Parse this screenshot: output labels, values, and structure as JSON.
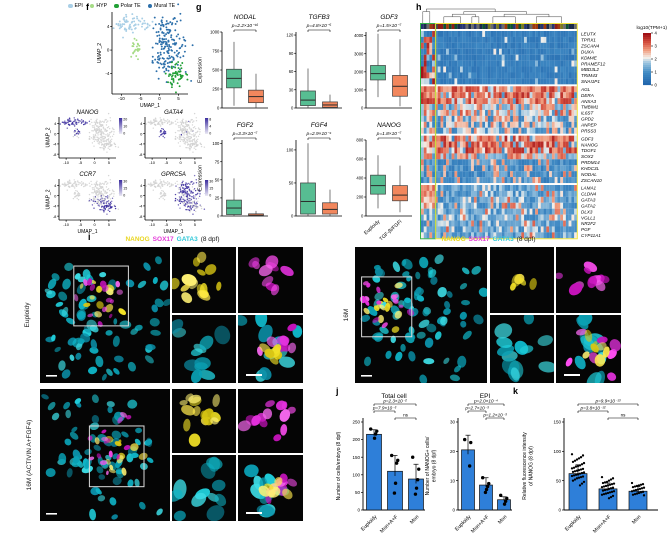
{
  "panels": {
    "f": "f",
    "g": "g",
    "h": "h",
    "i": "i",
    "j": "j",
    "k": "k"
  },
  "panel_f": {
    "legend": [
      {
        "label": "EPI",
        "color": "#A9CFE6"
      },
      {
        "label": "HYP",
        "color": "#A5DB85"
      },
      {
        "label": "Polar TE",
        "color": "#21A035"
      },
      {
        "label": "Mural TE",
        "color": "#2C6FAA"
      }
    ],
    "umap_xlabel": "UMAP_1",
    "umap_ylabel": "UMAP_2",
    "umap_xticks": [
      "-10",
      "-5",
      "0",
      "5"
    ],
    "umap_yticks": [
      "4",
      "0",
      "-4"
    ],
    "feature_yticks": [
      "4",
      "0",
      "-4",
      "-8"
    ],
    "feature_high_color": "#3B2D9E",
    "feature_low_color": "#D2D2D2",
    "feature_plots": [
      {
        "title": "NANOG",
        "colorbar_ticks": [
          "20",
          "10",
          "0"
        ]
      },
      {
        "title": "GATA4",
        "colorbar_ticks": [
          "8",
          "4",
          "0"
        ]
      },
      {
        "title": "CCR7",
        "colorbar_ticks": [
          "30",
          "15",
          "0"
        ]
      },
      {
        "title": "GPRC5A",
        "colorbar_ticks": [
          "30",
          "15",
          "0"
        ]
      }
    ]
  },
  "panel_g": {
    "ylabel": "Expression",
    "group_labels": [
      "Euploidy",
      "TGF-βi/FGFi"
    ],
    "euploidy_color": "#57BD92",
    "treated_color": "#F2875D"
  },
  "panel_h": {
    "colorbar_title": "log10(TPM+1)",
    "colorbar_ticks": [
      "4",
      "3",
      "2",
      "1",
      "0"
    ],
    "left_box_color": "#35B44A",
    "right_box_color": "#F2E63C",
    "gene_groups": [
      [
        "LEUTX",
        "TPRX1",
        "ZSCAN4",
        "DUXA",
        "KDM4E",
        "PRAMEF12",
        "MBD3L2",
        "TRIM43",
        "SNAI1P1"
      ],
      [
        "AGL",
        "DERA",
        "ANXA3",
        "TMBIM1",
        "IL6ST",
        "GPD2",
        "ANPEP",
        "PRSS3"
      ],
      [
        "GDF3",
        "NANOG",
        "TDGF1",
        "SOX2",
        "PRDM14",
        "KHDC3L",
        "NODAL",
        "ZSCAN10"
      ],
      [
        "LAMA1",
        "CLDN4",
        "GATA3",
        "GATA2",
        "DLX3",
        "VGLL1",
        "NR2F2",
        "PGF",
        "CYP11A1"
      ]
    ]
  },
  "panel_i": {
    "caption": [
      {
        "text": "NANOG",
        "color": "#E9D622"
      },
      {
        "text": "SOX17",
        "color": "#E43BD9"
      },
      {
        "text": "GATA3",
        "color": "#2FC8D8"
      },
      {
        "text": "(8 dpf)",
        "color": "#111111"
      }
    ],
    "row_labels": {
      "euploidy": "Euploidy",
      "treated": "16M (ACTIVIN A+FGF4)",
      "mono": "16M"
    }
  },
  "chart_data": [
    {
      "id": "box_NODAL",
      "type": "box",
      "title": "NODAL",
      "pvalue": "p=2.2×10⁻¹⁶",
      "ymax": 1000,
      "yticks": [
        0,
        250,
        500,
        750,
        1000
      ],
      "show_ylabel": true,
      "show_xlabels": false,
      "boxes": [
        {
          "lo": 30,
          "q1": 265,
          "med": 390,
          "q3": 510,
          "hi": 870
        },
        {
          "lo": 5,
          "q1": 70,
          "med": 150,
          "q3": 235,
          "hi": 450
        }
      ]
    },
    {
      "id": "box_TGFB3",
      "type": "box",
      "title": "TGFB3",
      "pvalue": "p=4.8×10⁻⁵",
      "ymax": 125,
      "yticks": [
        0,
        30,
        60,
        90,
        120
      ],
      "show_ylabel": false,
      "show_xlabels": false,
      "boxes": [
        {
          "lo": 0,
          "q1": 4,
          "med": 13,
          "q3": 28,
          "hi": 65
        },
        {
          "lo": 0,
          "q1": 1,
          "med": 5,
          "q3": 10,
          "hi": 22
        }
      ]
    },
    {
      "id": "box_GDF3",
      "type": "box",
      "title": "GDF3",
      "pvalue": "p=1.5×10⁻⁷",
      "ymax": 4200,
      "yticks": [
        0,
        1000,
        2000,
        3000,
        4000
      ],
      "show_ylabel": false,
      "show_xlabels": false,
      "boxes": [
        {
          "lo": 600,
          "q1": 1550,
          "med": 1900,
          "q3": 2350,
          "hi": 4100
        },
        {
          "lo": 100,
          "q1": 650,
          "med": 1200,
          "q3": 1800,
          "hi": 3800
        }
      ]
    },
    {
      "id": "box_FGF2",
      "type": "box",
      "title": "FGF2",
      "pvalue": "p=3.3×10⁻⁷",
      "ymax": 105,
      "yticks": [
        0,
        25,
        50,
        75,
        100
      ],
      "show_ylabel": true,
      "show_xlabels": false,
      "boxes": [
        {
          "lo": 0,
          "q1": 2,
          "med": 11,
          "q3": 22,
          "hi": 52
        },
        {
          "lo": 0,
          "q1": 0,
          "med": 1,
          "q3": 3,
          "hi": 7
        }
      ]
    },
    {
      "id": "box_FGF4",
      "type": "box",
      "title": "FGF4",
      "pvalue": "p=2.9×10⁻⁴",
      "ymax": 115,
      "yticks": [
        0,
        50,
        100
      ],
      "show_ylabel": false,
      "show_xlabels": false,
      "boxes": [
        {
          "lo": 0,
          "q1": 3,
          "med": 22,
          "q3": 50,
          "hi": 110
        },
        {
          "lo": 0,
          "q1": 3,
          "med": 10,
          "q3": 20,
          "hi": 40
        }
      ]
    },
    {
      "id": "box_NANOG",
      "type": "box",
      "title": "NANOG",
      "pvalue": "p=1.8×10⁻⁷",
      "ymax": 800,
      "yticks": [
        0,
        200,
        400,
        600,
        800
      ],
      "show_ylabel": false,
      "show_xlabels": true,
      "boxes": [
        {
          "lo": 80,
          "q1": 230,
          "med": 320,
          "q3": 430,
          "hi": 640
        },
        {
          "lo": 40,
          "q1": 160,
          "med": 220,
          "q3": 320,
          "hi": 530
        }
      ]
    },
    {
      "id": "bar_total",
      "type": "bar",
      "title": "Total cell",
      "ylabel": "Number of cells/embryo (8 dpf)",
      "ylabel_lines": [
        "Number of cells/embryo (8 dpf)"
      ],
      "categories": [
        "Euploidy",
        "Mon+A+F",
        "Mon"
      ],
      "values": [
        215,
        110,
        88
      ],
      "errors": [
        13,
        45,
        42
      ],
      "yticks": [
        0,
        50,
        100,
        150,
        200,
        250
      ],
      "ymax": 250,
      "bar_color": "#2E7FD9",
      "dots": [
        [
          230,
          224,
          216,
          204
        ],
        [
          155,
          141,
          133,
          76,
          48
        ],
        [
          150,
          116,
          86,
          62,
          45
        ]
      ],
      "significance": [
        {
          "pair": [
            0,
            2
          ],
          "label": "p=2.3×10⁻²"
        },
        {
          "pair": [
            0,
            1
          ],
          "label": "p=7.9×10⁻³"
        },
        {
          "pair": [
            1,
            2
          ],
          "label": "ns"
        }
      ]
    },
    {
      "id": "bar_epi",
      "type": "bar",
      "title": "EPI",
      "ylabel": "Number of NANOG+ cells/embryo (8 dpf)",
      "ylabel_lines": [
        "Number of NANOG+ cells/",
        "embryo (8 dpf)"
      ],
      "categories": [
        "Euploidy",
        "Mon+A+F",
        "Mon"
      ],
      "values": [
        20.5,
        8.5,
        3.5
      ],
      "errors": [
        5,
        2.5,
        1
      ],
      "yticks": [
        0,
        10,
        20,
        30
      ],
      "ymax": 30,
      "bar_color": "#2E7FD9",
      "dots": [
        [
          24,
          23,
          15
        ],
        [
          11,
          9,
          8,
          7,
          6
        ],
        [
          5,
          4,
          3,
          2
        ]
      ],
      "significance": [
        {
          "pair": [
            0,
            2
          ],
          "label": "p=2.0×10⁻⁴"
        },
        {
          "pair": [
            0,
            1
          ],
          "label": "p=2.7×10⁻³"
        },
        {
          "pair": [
            1,
            2
          ],
          "label": "p=1.2×10⁻³"
        }
      ]
    },
    {
      "id": "bar_nanog_int",
      "type": "bar",
      "title": "",
      "ylabel": "Relative fluorescence intensity of NANOG (8 dpf)",
      "ylabel_lines": [
        "Relative fluorescence intensity",
        "of NANOG (8 dpf)"
      ],
      "categories": [
        "Euploidy",
        "Mon+A+F",
        "Mon"
      ],
      "values": [
        62,
        36,
        32
      ],
      "errors": [
        15,
        10,
        8
      ],
      "yticks": [
        0,
        50,
        100,
        150
      ],
      "ymax": 150,
      "bar_color": "#2E7FD9",
      "dots": [
        [
          95,
          93,
          90,
          88,
          86,
          84,
          82,
          80,
          78,
          76,
          75,
          74,
          72,
          71,
          70,
          69,
          68,
          67,
          66,
          65,
          64,
          63,
          62,
          61,
          60,
          59,
          58,
          57,
          56,
          55,
          54,
          52,
          50,
          48,
          45,
          42
        ],
        [
          56,
          54,
          52,
          50,
          48,
          47,
          46,
          45,
          44,
          43,
          42,
          41,
          40,
          39,
          38,
          37,
          36,
          35,
          34,
          33,
          32,
          31,
          30,
          29,
          28,
          27,
          26,
          24,
          22,
          20
        ],
        [
          46,
          44,
          43,
          42,
          41,
          40,
          39,
          38,
          37,
          36,
          35,
          34,
          33,
          32,
          31,
          30,
          29,
          28,
          27,
          26,
          25
        ]
      ],
      "significance": [
        {
          "pair": [
            0,
            2
          ],
          "label": "p=9.9×10⁻¹³"
        },
        {
          "pair": [
            0,
            1
          ],
          "label": "p=3.8×10⁻¹²"
        },
        {
          "pair": [
            1,
            2
          ],
          "label": "ns"
        }
      ]
    },
    {
      "id": "heatmap",
      "type": "heatmap",
      "colorbar_title": "log10(TPM+1)",
      "colorbar_range": [
        0,
        4
      ]
    }
  ]
}
